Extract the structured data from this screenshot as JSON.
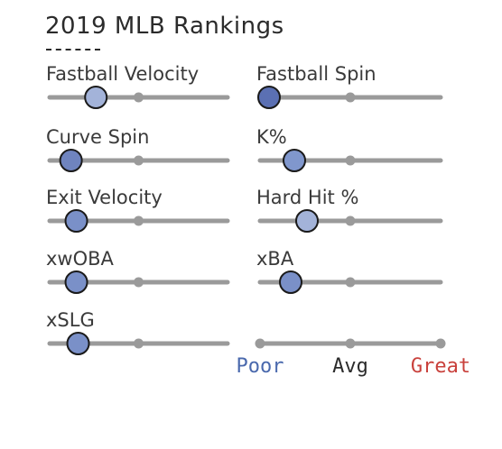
{
  "chart_data": {
    "type": "dot-slider",
    "title": "2019 MLB Rankings",
    "scale": {
      "min": 0,
      "mid": 0.5,
      "max": 1
    },
    "metrics": [
      {
        "label": "Fastball Velocity",
        "value": 0.26,
        "color": "#a3b3d9"
      },
      {
        "label": "Fastball Spin",
        "value": 0.05,
        "color": "#5b70b3"
      },
      {
        "label": "Curve Spin",
        "value": 0.12,
        "color": "#6f84bf"
      },
      {
        "label": "K%",
        "value": 0.19,
        "color": "#8097cd"
      },
      {
        "label": "Exit Velocity",
        "value": 0.15,
        "color": "#7a90c8"
      },
      {
        "label": "Hard Hit %",
        "value": 0.26,
        "color": "#a3b3d9"
      },
      {
        "label": "xwOBA",
        "value": 0.15,
        "color": "#7a90c8"
      },
      {
        "label": "xBA",
        "value": 0.17,
        "color": "#7a90c8"
      },
      {
        "label": "xSLG",
        "value": 0.16,
        "color": "#7a90c8"
      }
    ],
    "legend": [
      {
        "label": "Poor",
        "color": "#4a69ad"
      },
      {
        "label": "Avg",
        "color": "#2b2b2b"
      },
      {
        "label": "Great",
        "color": "#c9413c"
      }
    ],
    "track_color": "#9a9a9a"
  }
}
